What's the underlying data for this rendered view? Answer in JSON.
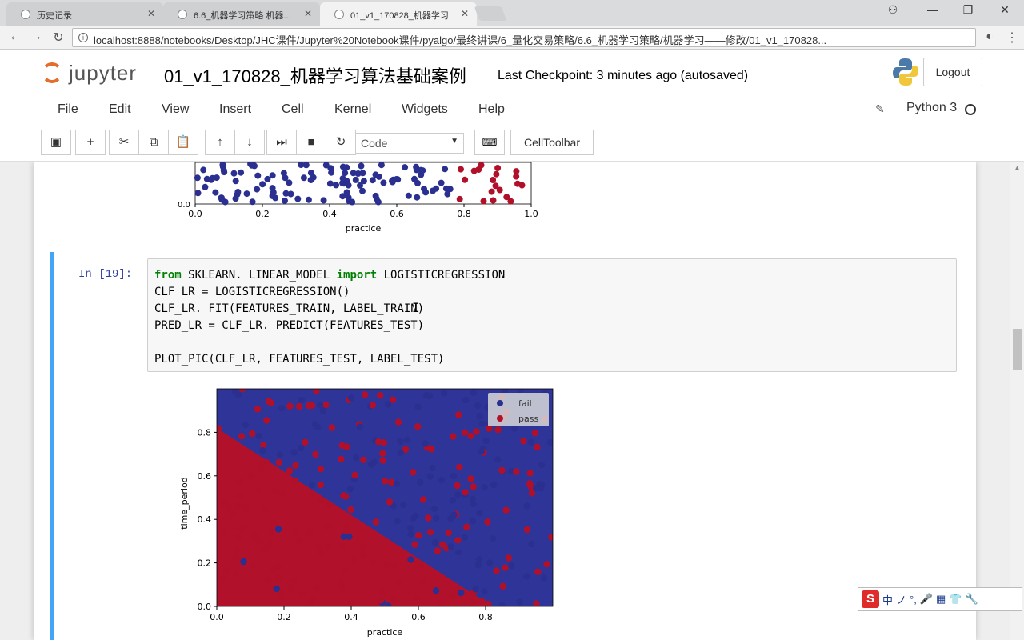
{
  "browser": {
    "tabs": [
      {
        "label": "历史记录"
      },
      {
        "label": "6.6_机器学习策略 机器..."
      },
      {
        "label": "01_v1_170828_机器学习"
      }
    ],
    "url": "localhost:8888/notebooks/Desktop/JHC课件/Jupyter%20Notebook课件/pyalgo/最终讲课/6_量化交易策略/6.6_机器学习策略/机器学习——修改/01_v1_170828..."
  },
  "jupyter": {
    "logo_text": "jupyter",
    "notebook_title": "01_v1_170828_机器学习算法基础案例",
    "checkpoint": "Last Checkpoint: 3 minutes ago (autosaved)",
    "logout_label": "Logout",
    "menu": [
      "File",
      "Edit",
      "View",
      "Insert",
      "Cell",
      "Kernel",
      "Widgets",
      "Help"
    ],
    "kernel_name": "Python 3",
    "cell_type": "Code",
    "cell_toolbar_label": "CellToolbar"
  },
  "cell": {
    "prompt": "In  [19]:",
    "code_lines": [
      {
        "kw": "from",
        "rest": " SKLEARN. LINEAR_MODEL ",
        "kw2": "import",
        "rest2": " LOGISTICREGRESSION"
      },
      {
        "text": "CLF_LR = LOGISTICREGRESSION()"
      },
      {
        "text": "CLF_LR. FIT(FEATURES_TRAIN, LABEL_TRAIN)"
      },
      {
        "text": "PRED_LR = CLF_LR. PREDICT(FEATURES_TEST)"
      },
      {
        "text": ""
      },
      {
        "text": "PLOT_PIC(CLF_LR, FEATURES_TEST, LABEL_TEST)"
      }
    ]
  },
  "chart_data": [
    {
      "type": "scatter",
      "title": "",
      "xlabel": "practice",
      "ylabel": "",
      "x_ticks": [
        "0.0",
        "0.2",
        "0.4",
        "0.6",
        "0.8",
        "1.0"
      ],
      "y_ticks": [
        "0.0"
      ],
      "xlim": [
        0,
        1.0
      ],
      "note_visible": "partially scrolled out of view; only bottom portion shown",
      "colors": {
        "fail": "#2b2f8f",
        "pass": "#b0102a"
      }
    },
    {
      "type": "scatter",
      "title": "",
      "xlabel": "practice",
      "ylabel": "time_period",
      "x_ticks": [
        "0.0",
        "0.2",
        "0.4",
        "0.6",
        "0.8"
      ],
      "y_ticks": [
        "0.0",
        "0.2",
        "0.4",
        "0.6",
        "0.8"
      ],
      "xlim": [
        0,
        1.0
      ],
      "ylim": [
        0,
        1.0
      ],
      "legend": [
        "fail",
        "pass"
      ],
      "legend_position": "top-right",
      "decision_boundary": {
        "x0": 0.0,
        "y0": 0.82,
        "x1": 0.82,
        "y1": 0.0
      },
      "colors": {
        "fail": "#2b2f8f",
        "pass": "#b0102a",
        "region_fail": "#2f3598",
        "region_pass": "#b2112b"
      }
    }
  ],
  "ime": {
    "brand": "S",
    "labels": [
      "中",
      "ノ",
      "°,",
      "🎤",
      "▦",
      "👕",
      "🔧"
    ]
  }
}
